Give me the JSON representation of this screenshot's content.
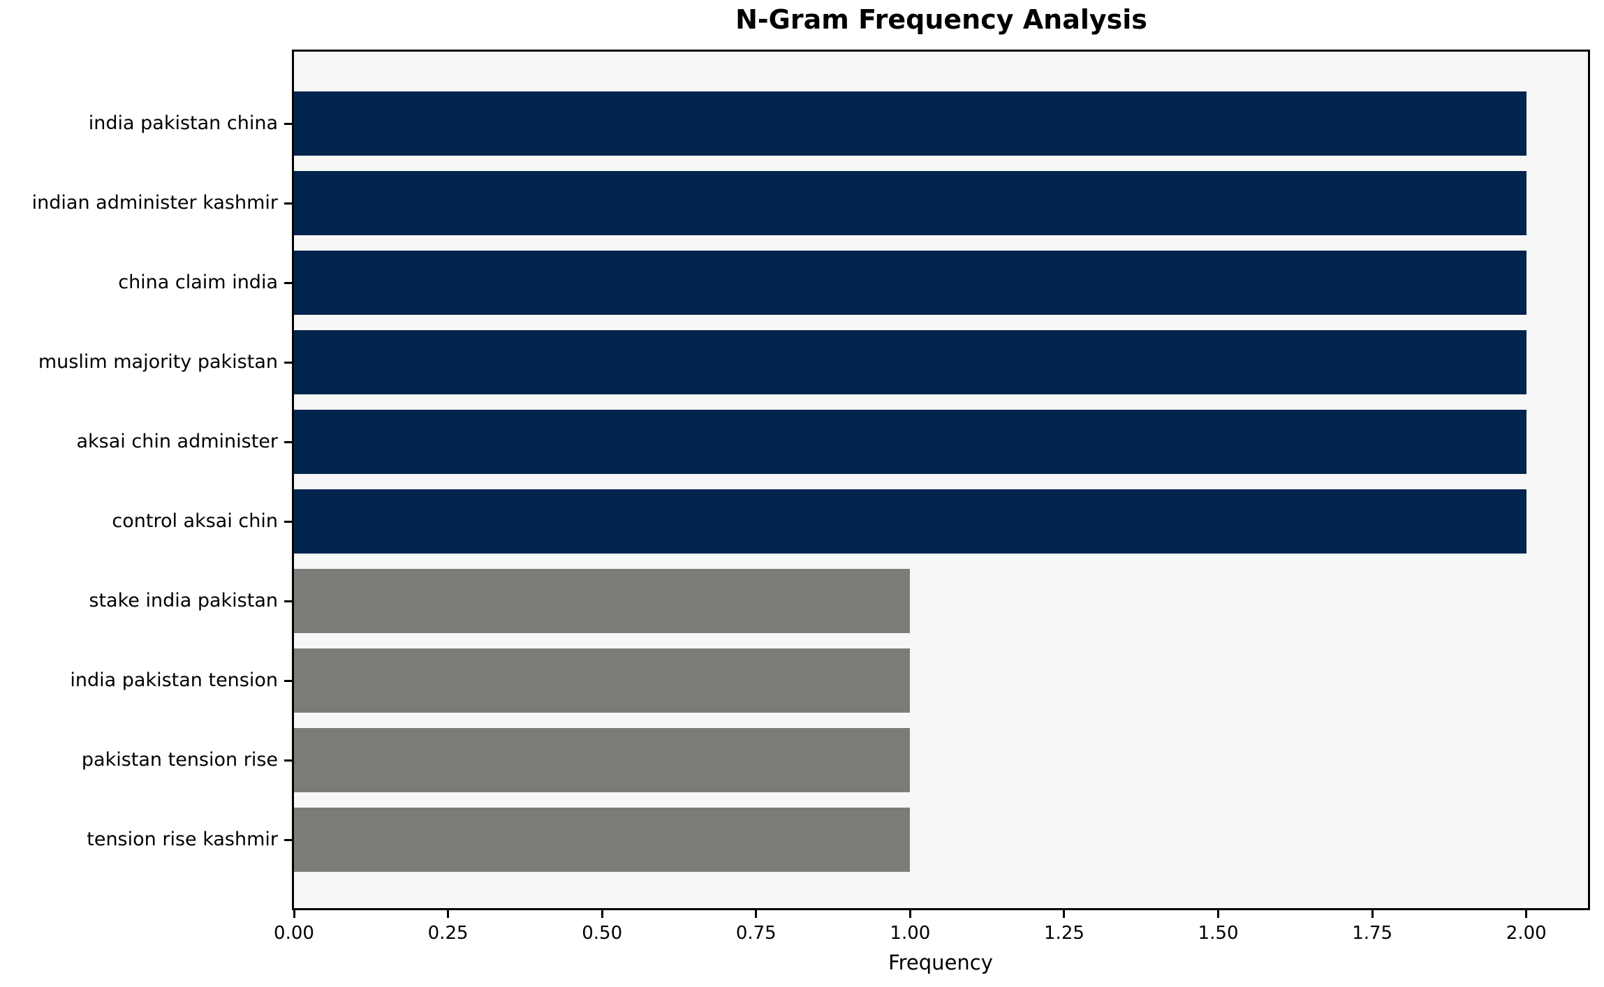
{
  "chart_data": {
    "type": "bar",
    "orientation": "horizontal",
    "title": "N-Gram Frequency Analysis",
    "xlabel": "Frequency",
    "ylabel": "",
    "categories": [
      "india pakistan china",
      "indian administer kashmir",
      "china claim india",
      "muslim majority pakistan",
      "aksai chin administer",
      "control aksai chin",
      "stake india pakistan",
      "india pakistan tension",
      "pakistan tension rise",
      "tension rise kashmir"
    ],
    "values": [
      2,
      2,
      2,
      2,
      2,
      2,
      1,
      1,
      1,
      1
    ],
    "bar_colors": [
      "#03254d",
      "#03254d",
      "#03254d",
      "#03254d",
      "#03254d",
      "#03254d",
      "#7b7b78",
      "#7b7b78",
      "#7b7b78",
      "#7b7b78"
    ],
    "x_ticks": [
      "0.00",
      "0.25",
      "0.50",
      "0.75",
      "1.00",
      "1.25",
      "1.50",
      "1.75",
      "2.00"
    ],
    "x_tick_values": [
      0,
      0.25,
      0.5,
      0.75,
      1.0,
      1.25,
      1.5,
      1.75,
      2.0
    ],
    "xlim": [
      0,
      2.1
    ],
    "grid": false,
    "legend": false,
    "colors": {
      "bar_high": "#03254d",
      "bar_low": "#7b7b78",
      "plot_background": "#f7f7f7",
      "figure_background": "#ffffff",
      "spine": "#000000",
      "text": "#000000"
    }
  }
}
